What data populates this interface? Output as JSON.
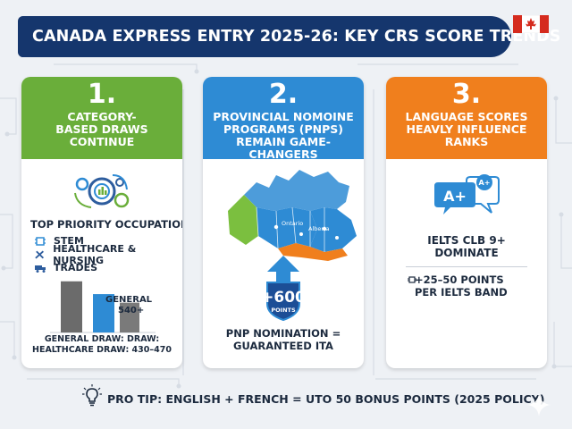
{
  "banner": {
    "title": "CANADA EXPRESS ENTRY 2025-26: KEY CRS SCORE TRENDS"
  },
  "colors": {
    "banner": "#15366d",
    "card1": "#6aae3a",
    "card2": "#2e8bd4",
    "card3": "#f07f1d",
    "flag_red": "#d52b1e"
  },
  "cards": [
    {
      "number": "1.",
      "heading": "CATEGORY-\nBASED DRAWS\nCONTINUE",
      "icon": "gears-with-chart-icon",
      "subheading": "TOP PRIORITY OCCUPATIONS:",
      "occupations": [
        {
          "label": "STEM",
          "icon": "chip-icon"
        },
        {
          "label": "HEALTHCARE & NURSING",
          "icon": "tools-icon"
        },
        {
          "label": "TRADES",
          "icon": "truck-icon"
        }
      ],
      "bar_labels": [
        "GENERAL",
        "540+"
      ],
      "caption": "GENERAL DRAW: DRAW:\nHEALTHCARE DRAW: 430–470"
    },
    {
      "number": "2.",
      "heading": "PROVINCIAL NOMOINE\nPROGRAMS (PNPS)\nREMAIN GAME-CHANGERS",
      "map_labels": [
        "Ontario",
        "Alberta"
      ],
      "badge_value": "+600",
      "badge_unit": "POINTS",
      "caption": "PNP NOMINATION =\nGUARANTEED ITA"
    },
    {
      "number": "3.",
      "heading": "LANGUAGE SCORES\nHEAVLY INFLUENCE\nRANKS",
      "icon_text_main": "A+",
      "icon_text_small": "A+",
      "main_text": "IELTS CLB 9+\nDOMINATE",
      "points_text": "+25–50 POINTS\nPER IELTS BAND"
    }
  ],
  "chart_data": {
    "type": "bar",
    "categories": [
      "",
      "",
      ""
    ],
    "values": [
      540,
      480,
      440
    ],
    "ylim": [
      300,
      560
    ],
    "colors": [
      "#6b6b6b",
      "#2e8bd4",
      "#7a7a7a"
    ]
  },
  "footer": {
    "tip": "PRO TIP: ENGLISH + FRENCH = UTO 50 BONUS POINTS (2025 POLICY)",
    "icon": "lightbulb-icon"
  }
}
